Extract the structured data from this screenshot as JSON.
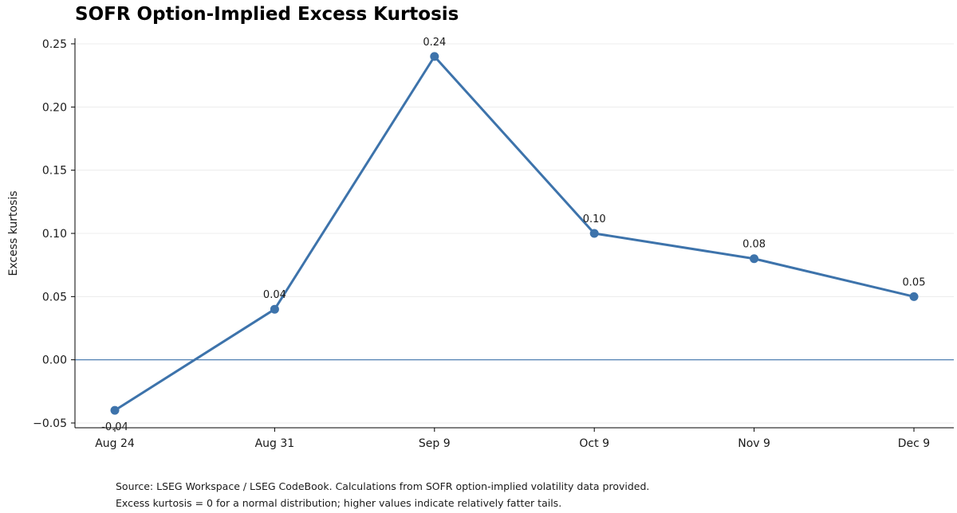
{
  "chart_data": {
    "type": "line",
    "title": "SOFR Option-Implied Excess Kurtosis",
    "xlabel": "",
    "ylabel": "Excess kurtosis",
    "categories": [
      "Aug 24",
      "Aug 31",
      "Sep 9",
      "Oct 9",
      "Nov 9",
      "Dec 9"
    ],
    "series": [
      {
        "values": [
          -0.04,
          0.04,
          0.24,
          0.1,
          0.08,
          0.05
        ],
        "data_labels": [
          "-0.04",
          "0.04",
          "0.24",
          "0.10",
          "0.08",
          "0.05"
        ],
        "color": "#3d73ab",
        "marker": "circle"
      }
    ],
    "ylim": [
      -0.055,
      0.255
    ],
    "yticks": [
      -0.05,
      0.0,
      0.05,
      0.1,
      0.15,
      0.2,
      0.25
    ],
    "ytick_labels": [
      "−0.05",
      "0.00",
      "0.05",
      "0.10",
      "0.15",
      "0.20",
      "0.25"
    ],
    "reference_line": {
      "y": 0.0,
      "color": "#3d73ab"
    },
    "grid": "horizontal-light",
    "legend": "none"
  },
  "notes": [
    "Source: LSEG Workspace / LSEG CodeBook. Calculations from SOFR option-implied volatility data provided.",
    "Excess kurtosis = 0 for a normal distribution; higher values indicate relatively fatter tails."
  ]
}
